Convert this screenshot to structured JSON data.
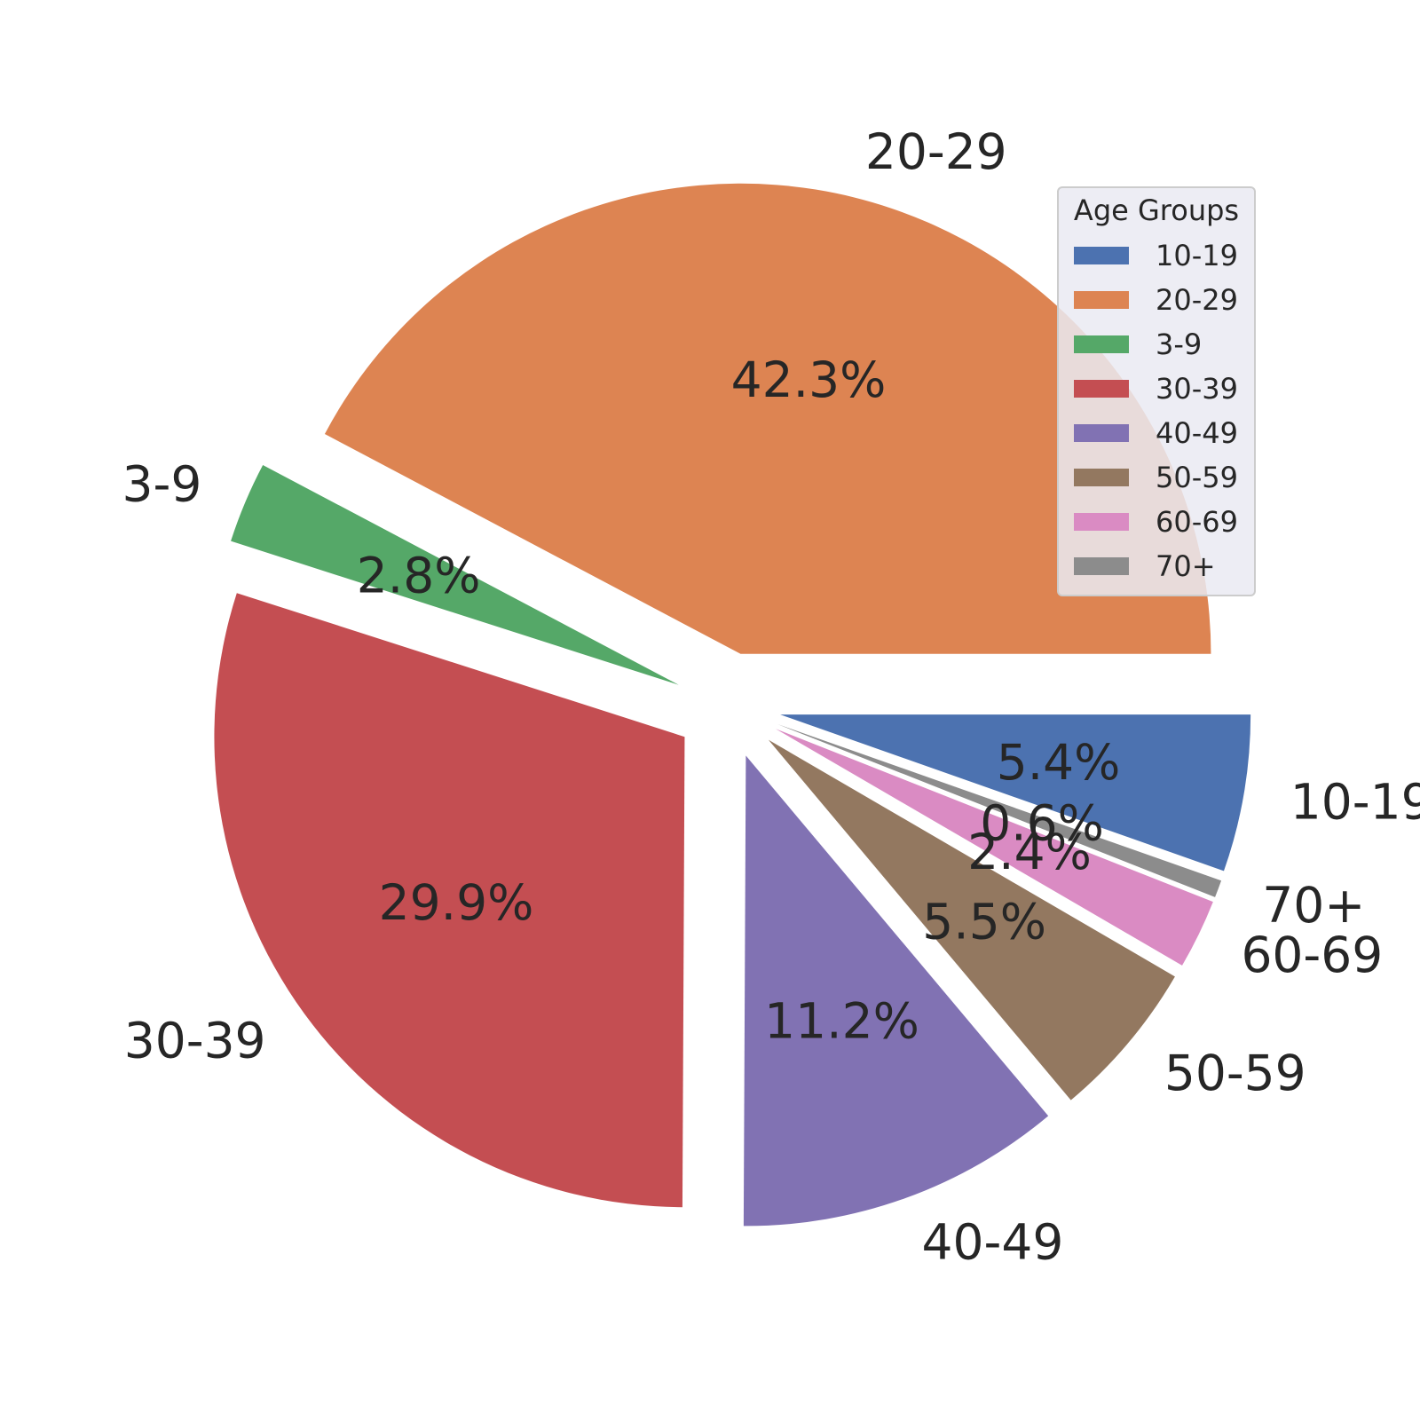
{
  "chart_data": {
    "type": "pie",
    "categories": [
      "10-19",
      "70+",
      "60-69",
      "50-59",
      "40-49",
      "30-39",
      "3-9",
      "20-29"
    ],
    "values": [
      5.4,
      0.6,
      2.4,
      5.5,
      11.2,
      29.9,
      2.8,
      42.3
    ],
    "percent_labels": [
      "5.4%",
      "0.6%",
      "2.4%",
      "5.5%",
      "11.2%",
      "29.9%",
      "2.8%",
      "42.3%"
    ],
    "colors": [
      "#4c72b0",
      "#8c8c8c",
      "#da8bc3",
      "#937860",
      "#8172b3",
      "#c44e52",
      "#55a868",
      "#dd8452"
    ],
    "exploded": true,
    "direction": "clockwise",
    "start": "3 o'clock",
    "legend": {
      "title": "Age Groups",
      "placement": "upper-right",
      "entries": [
        {
          "label": "10-19",
          "color": "#4c72b0"
        },
        {
          "label": "20-29",
          "color": "#dd8452"
        },
        {
          "label": "3-9",
          "color": "#55a868"
        },
        {
          "label": "30-39",
          "color": "#c44e52"
        },
        {
          "label": "40-49",
          "color": "#8172b3"
        },
        {
          "label": "50-59",
          "color": "#937860"
        },
        {
          "label": "60-69",
          "color": "#da8bc3"
        },
        {
          "label": "70+",
          "color": "#8c8c8c"
        }
      ]
    }
  }
}
